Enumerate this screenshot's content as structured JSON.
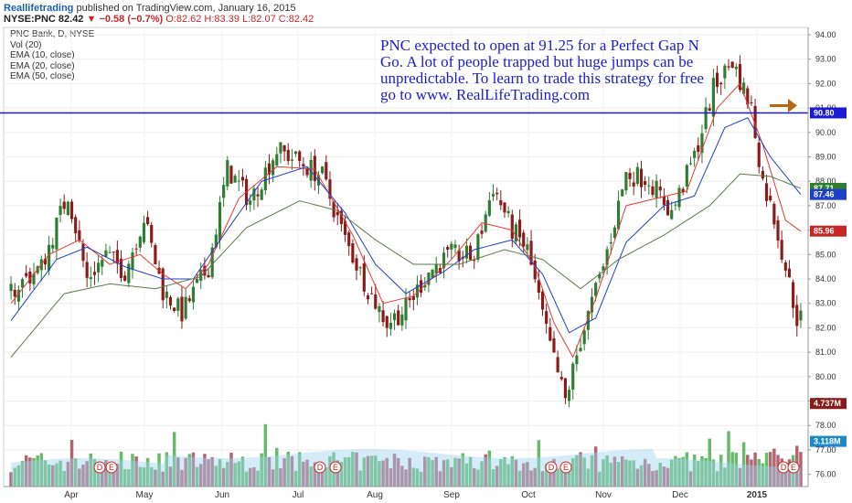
{
  "header": {
    "brand": "Reallifetrading",
    "text": " published on TradingView.com, January 16, 2015"
  },
  "ticker": {
    "symbol": "NYSE:PNC 82.42",
    "change": "▼ −0.58 (−0.7%)",
    "ohlc": "O:82.62 H:83.39 L:82.07 C:82.42"
  },
  "legend": [
    "PNC Bank, D, NYSE",
    "Vol (20)",
    "EMA (10, close)",
    "EMA (20, close)",
    "EMA (50, close)"
  ],
  "annotation": "PNC expected to open at 91.25 for a Perfect Gap N Go.  A lot of people trapped but huge jumps can be unpredictable.  To learn to trade this strategy for free go to www. RealLifeTrading.com",
  "colors": {
    "up": "#2e7d32",
    "down": "#8b1a1a",
    "ema10": "#e53935",
    "ema20": "#1e40c8",
    "ema50": "#5a7a4a",
    "hline": "#1b1bd6",
    "arrow": "#b8660f",
    "volavg": "#9fd3f0"
  },
  "chart_data": {
    "type": "candlestick",
    "symbol": "PNC",
    "y_range": [
      75.5,
      94.3
    ],
    "y_ticks": [
      "94.00",
      "93.00",
      "92.00",
      "91.00",
      "90.00",
      "89.00",
      "88.00",
      "87.00",
      "86.00",
      "85.00",
      "84.00",
      "83.00",
      "82.00",
      "81.00",
      "80.00",
      "79.00",
      "78.00",
      "77.00",
      "76.00"
    ],
    "x_labels": [
      "Apr",
      "May",
      "Jun",
      "Jul",
      "Aug",
      "Sep",
      "Oct",
      "Nov",
      "Dec",
      "2015"
    ],
    "horizontal_line": 90.8,
    "price_tags": [
      {
        "label": "90.80",
        "value": 90.8,
        "color": "#1b1bd6"
      },
      {
        "label": "87.71",
        "value": 87.71,
        "color": "#2e7d32"
      },
      {
        "label": "87.46",
        "value": 87.46,
        "color": "#1e40c8"
      },
      {
        "label": "85.96",
        "value": 85.96,
        "color": "#c62828"
      },
      {
        "label": "4.737M",
        "value": 78.9,
        "color": "#8b1a1a"
      },
      {
        "label": "3.118M",
        "value": 77.35,
        "color": "#1e88c8"
      }
    ],
    "earnings_markers": [
      "D",
      "E",
      "D",
      "E",
      "D",
      "E",
      "D",
      "E"
    ],
    "anchors": [
      [
        0,
        83.5
      ],
      [
        8,
        84.5
      ],
      [
        15,
        87.5
      ],
      [
        20,
        84
      ],
      [
        25,
        85
      ],
      [
        30,
        84.3
      ],
      [
        35,
        86.5
      ],
      [
        40,
        83.5
      ],
      [
        45,
        82.6
      ],
      [
        52,
        84.5
      ],
      [
        57,
        88.5
      ],
      [
        63,
        87.2
      ],
      [
        70,
        89.3
      ],
      [
        76,
        88.8
      ],
      [
        82,
        88.2
      ],
      [
        88,
        85.6
      ],
      [
        94,
        83.6
      ],
      [
        99,
        82.2
      ],
      [
        104,
        82.8
      ],
      [
        110,
        84.3
      ],
      [
        116,
        85
      ],
      [
        122,
        84.9
      ],
      [
        127,
        87.8
      ],
      [
        132,
        86
      ],
      [
        136,
        85.2
      ],
      [
        141,
        81.8
      ],
      [
        146,
        79
      ],
      [
        150,
        81.5
      ],
      [
        156,
        84.5
      ],
      [
        162,
        88.3
      ],
      [
        168,
        88.1
      ],
      [
        174,
        86.7
      ],
      [
        180,
        89
      ],
      [
        185,
        91.8
      ],
      [
        190,
        92.9
      ],
      [
        195,
        91
      ],
      [
        198,
        88
      ],
      [
        201,
        86.5
      ],
      [
        204,
        84.5
      ],
      [
        207,
        82.4
      ]
    ],
    "ema_anchors": {
      "ema10": [
        [
          0,
          83
        ],
        [
          10,
          85
        ],
        [
          18,
          85.6
        ],
        [
          26,
          84.6
        ],
        [
          34,
          85
        ],
        [
          40,
          84.2
        ],
        [
          46,
          83.6
        ],
        [
          52,
          84.6
        ],
        [
          60,
          87.3
        ],
        [
          70,
          88.6
        ],
        [
          80,
          88.5
        ],
        [
          90,
          85.8
        ],
        [
          98,
          83
        ],
        [
          106,
          83.3
        ],
        [
          116,
          84.8
        ],
        [
          124,
          86.3
        ],
        [
          132,
          86
        ],
        [
          138,
          84.5
        ],
        [
          143,
          82.2
        ],
        [
          148,
          80.8
        ],
        [
          154,
          83.2
        ],
        [
          162,
          87
        ],
        [
          170,
          87.3
        ],
        [
          178,
          87.6
        ],
        [
          186,
          91
        ],
        [
          192,
          92
        ],
        [
          198,
          89.5
        ],
        [
          204,
          86.4
        ],
        [
          208,
          85.96
        ]
      ],
      "ema20": [
        [
          0,
          82.3
        ],
        [
          12,
          84.8
        ],
        [
          20,
          85.3
        ],
        [
          30,
          84.5
        ],
        [
          40,
          84
        ],
        [
          48,
          84
        ],
        [
          56,
          85.8
        ],
        [
          66,
          88
        ],
        [
          78,
          88.6
        ],
        [
          88,
          86.7
        ],
        [
          96,
          84.6
        ],
        [
          104,
          83.4
        ],
        [
          114,
          84.3
        ],
        [
          122,
          85.2
        ],
        [
          132,
          85.6
        ],
        [
          140,
          84.2
        ],
        [
          147,
          81.8
        ],
        [
          154,
          82.4
        ],
        [
          162,
          85.5
        ],
        [
          172,
          87
        ],
        [
          180,
          87.4
        ],
        [
          188,
          90.2
        ],
        [
          194,
          90.6
        ],
        [
          200,
          89
        ],
        [
          208,
          87.46
        ]
      ],
      "ema50": [
        [
          0,
          80.8
        ],
        [
          14,
          83.4
        ],
        [
          26,
          83.8
        ],
        [
          38,
          83.6
        ],
        [
          50,
          84.1
        ],
        [
          62,
          86.1
        ],
        [
          76,
          87.2
        ],
        [
          86,
          86.8
        ],
        [
          96,
          85.6
        ],
        [
          106,
          84.6
        ],
        [
          118,
          84.6
        ],
        [
          130,
          85.2
        ],
        [
          140,
          84.8
        ],
        [
          150,
          83.6
        ],
        [
          160,
          84.8
        ],
        [
          172,
          85.8
        ],
        [
          184,
          87
        ],
        [
          192,
          88.3
        ],
        [
          200,
          88.2
        ],
        [
          208,
          87.71
        ]
      ]
    }
  }
}
